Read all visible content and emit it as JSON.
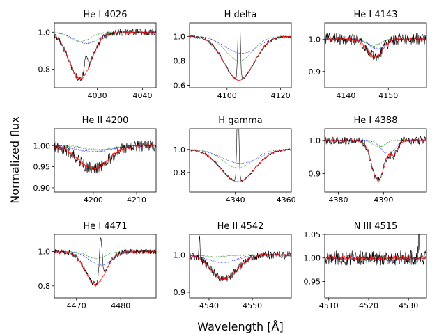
{
  "figure": {
    "xlabel": "Wavelength [Å]",
    "ylabel": "Normalized flux"
  },
  "series_legend": {
    "observed": {
      "color": "#000000"
    },
    "model_sum": {
      "color": "#ff0000"
    },
    "component_1": {
      "color": "#008000"
    },
    "component_2": {
      "color": "#0000ff"
    }
  },
  "chart_data": [
    {
      "type": "line",
      "title": "He I 4026",
      "center": 4026.2,
      "xlim": [
        4020.5,
        4043
      ],
      "ylim": [
        0.7,
        1.05
      ],
      "xticks": [
        4030,
        4040
      ],
      "yticks": [
        0.8,
        1.0
      ],
      "ytick_labels": [
        "0.8",
        "1.0"
      ],
      "depth": 0.25,
      "width": 2.5,
      "noise": 0.018,
      "g_center": 4026.2,
      "g_depth": 0.05,
      "b_center": 4027.5,
      "b_depth": 0.06,
      "emission": {
        "x": 4027.5,
        "height": 0.1,
        "width": 0.3
      }
    },
    {
      "type": "line",
      "title": "H delta",
      "center": 4104.5,
      "xlim": [
        4086,
        4124
      ],
      "ylim": [
        0.58,
        1.11
      ],
      "xticks": [
        4100,
        4120
      ],
      "yticks": [
        0.6,
        0.8,
        1.0
      ],
      "ytick_labels": [
        "0.6",
        "0.8",
        "1.0"
      ],
      "depth": 0.36,
      "width": 5.5,
      "noise": 0.012,
      "g_center": 4104.5,
      "g_depth": 0.2,
      "b_center": 4105.5,
      "b_depth": 0.14,
      "emission": {
        "x": 4104.5,
        "height": 0.7,
        "width": 0.4
      }
    },
    {
      "type": "line",
      "title": "He I 4143",
      "center": 4146.8,
      "xlim": [
        4135,
        4159
      ],
      "ylim": [
        0.85,
        1.05
      ],
      "xticks": [
        4140,
        4150
      ],
      "yticks": [
        0.9,
        1.0
      ],
      "ytick_labels": [
        "0.9",
        "1.0"
      ],
      "depth": 0.055,
      "width": 1.8,
      "noise": 0.018,
      "g_center": 4146.5,
      "g_depth": 0.02,
      "b_center": 4147.5,
      "b_depth": 0.03,
      "emission": null
    },
    {
      "type": "line",
      "title": "He II 4200",
      "center": 4200,
      "xlim": [
        4191,
        4214.5
      ],
      "ylim": [
        0.89,
        1.04
      ],
      "xticks": [
        4200,
        4210
      ],
      "yticks": [
        0.9,
        0.95,
        1.0
      ],
      "ytick_labels": [
        "0.90",
        "0.95",
        "1.00"
      ],
      "depth": 0.055,
      "width": 3.5,
      "noise": 0.014,
      "g_center": 4201,
      "g_depth": 0.01,
      "b_center": 4200,
      "b_depth": 0.015,
      "emission": null
    },
    {
      "type": "line",
      "title": "H gamma",
      "center": 4341,
      "xlim": [
        4322,
        4362
      ],
      "ylim": [
        0.63,
        1.18
      ],
      "xticks": [
        4340,
        4360
      ],
      "yticks": [
        0.8,
        1.0
      ],
      "ytick_labels": [
        "0.8",
        "1.0"
      ],
      "depth": 0.28,
      "width": 6.5,
      "noise": 0.01,
      "g_center": 4341,
      "g_depth": 0.16,
      "b_center": 4342,
      "b_depth": 0.12,
      "emission": {
        "x": 4341,
        "height": 0.7,
        "width": 0.4
      }
    },
    {
      "type": "line",
      "title": "He I 4388",
      "center": 4388.8,
      "xlim": [
        4377,
        4399.5
      ],
      "ylim": [
        0.845,
        1.035
      ],
      "xticks": [
        4380,
        4390
      ],
      "yticks": [
        0.9,
        1.0
      ],
      "ytick_labels": [
        "0.9",
        "1.0"
      ],
      "depth": 0.12,
      "width": 1.4,
      "noise": 0.012,
      "g_center": 4389,
      "g_depth": 0.02,
      "b_center": 4391,
      "b_depth": 0.04,
      "emission": null,
      "extra_dip": {
        "x": 4392.3,
        "depth": 0.04,
        "width": 0.8
      }
    },
    {
      "type": "line",
      "title": "He I 4471",
      "center": 4474.3,
      "xlim": [
        4465,
        4488
      ],
      "ylim": [
        0.73,
        1.1
      ],
      "xticks": [
        4470,
        4480
      ],
      "yticks": [
        0.8,
        1.0
      ],
      "ytick_labels": [
        "0.8",
        "1.0"
      ],
      "depth": 0.19,
      "width": 2.3,
      "noise": 0.016,
      "g_center": 4474.5,
      "g_depth": 0.04,
      "b_center": 4475.5,
      "b_depth": 0.08,
      "emission": {
        "x": 4475.5,
        "height": 0.25,
        "width": 0.3
      }
    },
    {
      "type": "line",
      "title": "He II 4542",
      "center": 4543.5,
      "xlim": [
        4535.5,
        4559
      ],
      "ylim": [
        0.885,
        1.055
      ],
      "xticks": [
        4540,
        4550
      ],
      "yticks": [
        0.9,
        1.0
      ],
      "ytick_labels": [
        "0.9",
        "1.0"
      ],
      "depth": 0.065,
      "width": 3.0,
      "noise": 0.011,
      "g_center": 4542,
      "g_depth": 0.005,
      "b_center": 4543,
      "b_depth": 0.02,
      "emission": {
        "x": 4537.8,
        "height": 0.06,
        "width": 0.12
      }
    },
    {
      "type": "line",
      "title": "N III 4515",
      "center": 4520,
      "xlim": [
        4509,
        4534.5
      ],
      "ylim": [
        0.915,
        1.05
      ],
      "xticks": [
        4510,
        4520,
        4530
      ],
      "yticks": [
        0.95,
        1.0,
        1.05
      ],
      "ytick_labels": [
        "0.95",
        "1.00",
        "1.05"
      ],
      "depth": 0.0,
      "width": 3.0,
      "noise": 0.016,
      "g_center": 4520,
      "g_depth": 0.005,
      "b_center": 4525,
      "b_depth": 0.005,
      "emission": {
        "x": 4532.6,
        "height": 0.045,
        "width": 0.15
      }
    }
  ]
}
